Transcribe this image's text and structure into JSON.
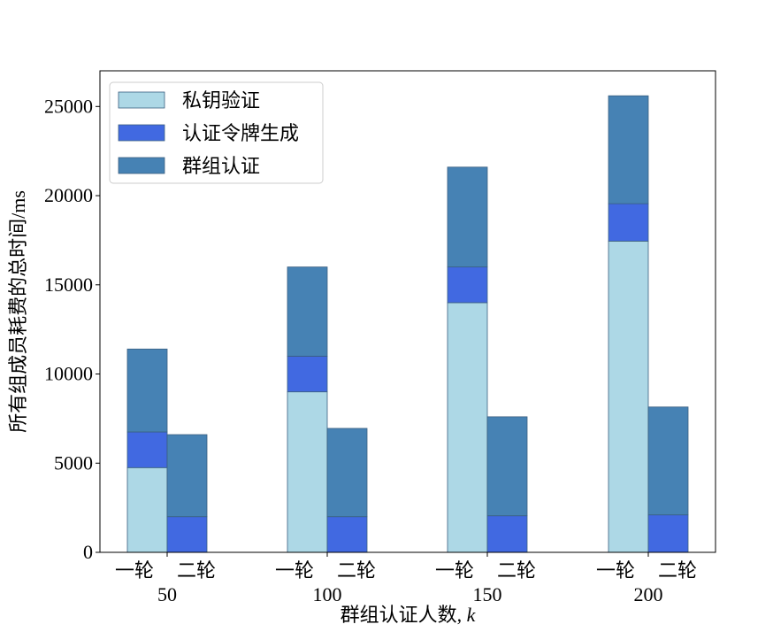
{
  "chart_data": {
    "type": "bar",
    "stacked": true,
    "groups": [
      "50",
      "100",
      "150",
      "200"
    ],
    "sub_labels": [
      "一轮",
      "二轮"
    ],
    "xlabel": "群组认证人数, k",
    "ylabel": "所有组成员耗费的总时间/ms",
    "ylim": [
      0,
      27000
    ],
    "yticks": [
      0,
      5000,
      10000,
      15000,
      20000,
      25000
    ],
    "grid": false,
    "legend_position": "top-left",
    "series": [
      {
        "name": "私钥验证",
        "color": "#add8e6",
        "round1": [
          4750,
          9000,
          14000,
          17450
        ],
        "round2": [
          0,
          0,
          0,
          0
        ]
      },
      {
        "name": "认证令牌生成",
        "color": "#4169e1",
        "round1": [
          2000,
          2000,
          2000,
          2100
        ],
        "round2": [
          2000,
          2000,
          2050,
          2100
        ]
      },
      {
        "name": "群组认证",
        "color": "#4682b4",
        "round1": [
          4650,
          5000,
          5600,
          6050
        ],
        "round2": [
          4600,
          4950,
          5550,
          6050
        ]
      }
    ]
  }
}
